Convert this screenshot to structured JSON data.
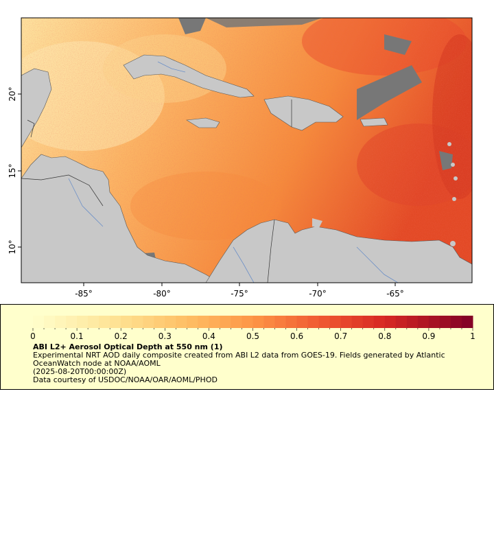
{
  "map": {
    "lon_ticks": [
      "-85°",
      "-80°",
      "-75°",
      "-70°",
      "-65°"
    ],
    "lat_ticks": [
      "20°",
      "15°",
      "10°"
    ],
    "colors": {
      "ocean_low": "#fde6a8",
      "ocean_mid": "#fbaa55",
      "ocean_high": "#e8402a",
      "land": "#c8c8c8",
      "cloud": "#777777",
      "border": "#555555",
      "river": "#6b8fc7"
    }
  },
  "legend": {
    "colorbar_ticks": [
      "0",
      "0.1",
      "0.2",
      "0.3",
      "0.4",
      "0.5",
      "0.6",
      "0.7",
      "0.8",
      "0.9",
      "1"
    ],
    "title": "ABI L2+ Aerosol Optical Depth at 550 nm (1)",
    "line1": "Experimental NRT AOD daily composite created from ABI L2 data from GOES-19. Fields generated by Atlantic OceanWatch node at NOAA/AOML",
    "line2": "(2025-08-20T00:00:00Z)",
    "line3": "Data courtesy of USDOC/NOAA/OAR/AOML/PHOD"
  }
}
